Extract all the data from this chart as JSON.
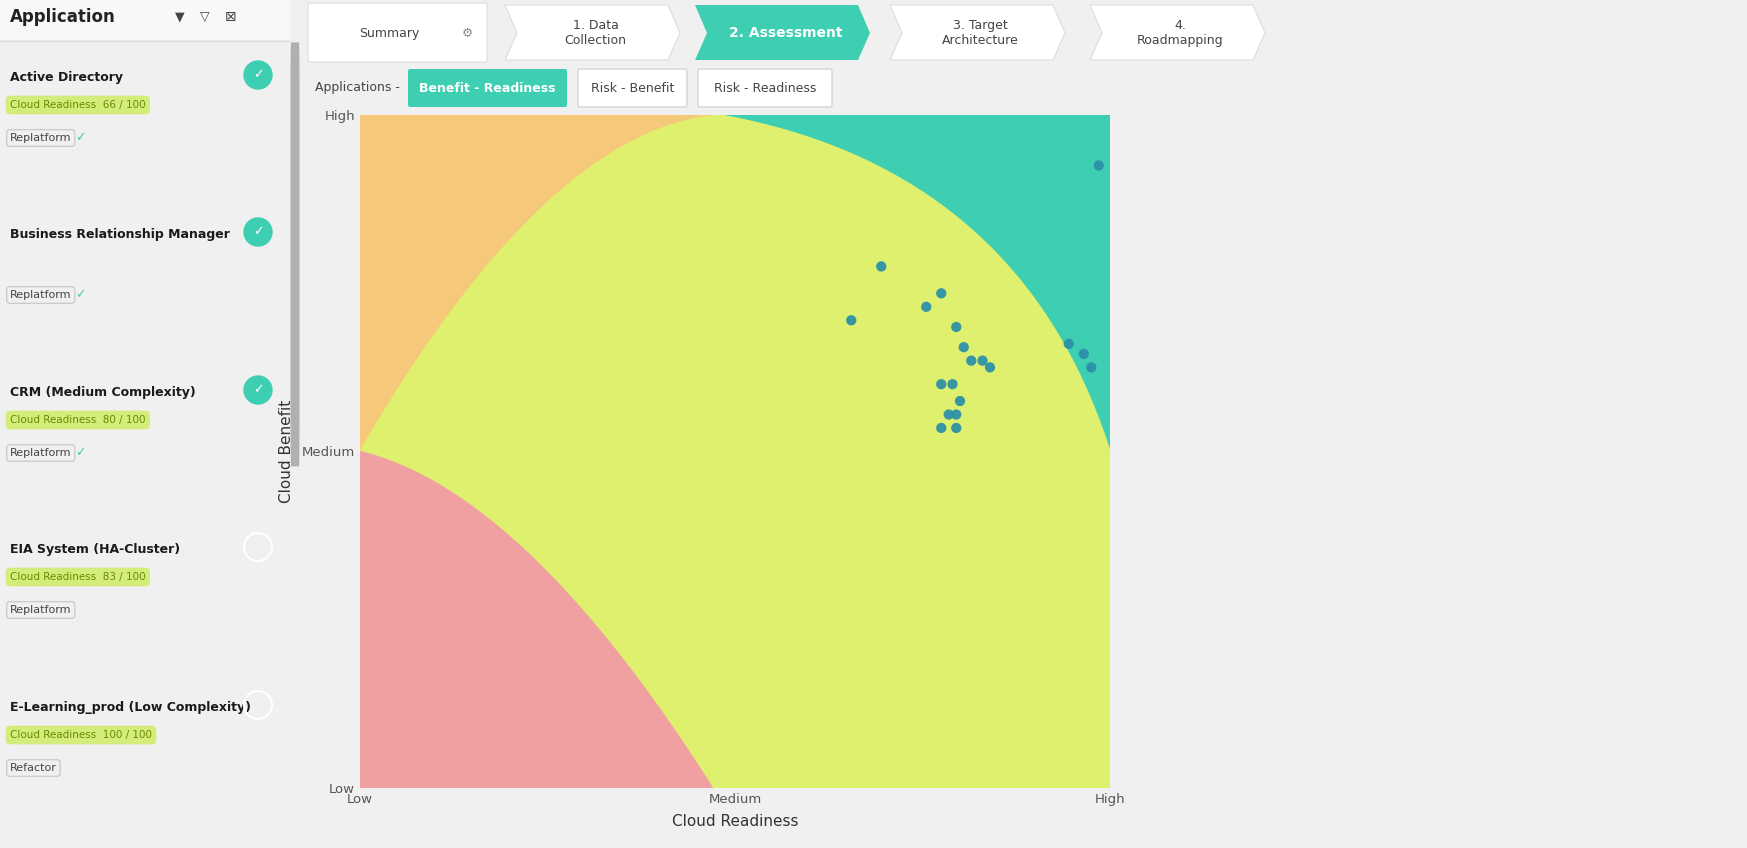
{
  "background_color": "#f0f0f0",
  "plot_area_bg": "#f0f0f0",
  "left_panel_bg": "#ffffff",
  "chart_bg": "#f5c87a",
  "nav_tabs": [
    "Summary",
    "1. Data\nCollection",
    "2. Assessment",
    "3. Target\nArchitecture",
    "4.\nRoadmapping"
  ],
  "active_tab_idx": 2,
  "active_tab_color": "#3ecfb2",
  "inactive_tab_color": "#ffffff",
  "inactive_tab_edge": "#dddddd",
  "sub_tabs": [
    "Applications -",
    "Benefit - Readiness",
    "Risk - Benefit",
    "Risk - Readiness"
  ],
  "active_sub_tab_idx": 1,
  "active_sub_tab_color": "#3ecfb2",
  "xlabel": "Cloud Readiness",
  "ylabel": "Cloud Benefit",
  "xtick_labels": [
    "Low",
    "Medium",
    "High"
  ],
  "ytick_labels": [
    "Low",
    "Medium",
    "High"
  ],
  "scatter_points": [
    [
      0.695,
      0.775
    ],
    [
      0.755,
      0.715
    ],
    [
      0.775,
      0.735
    ],
    [
      0.795,
      0.685
    ],
    [
      0.805,
      0.655
    ],
    [
      0.815,
      0.635
    ],
    [
      0.83,
      0.635
    ],
    [
      0.84,
      0.625
    ],
    [
      0.775,
      0.6
    ],
    [
      0.79,
      0.6
    ],
    [
      0.8,
      0.575
    ],
    [
      0.795,
      0.555
    ],
    [
      0.785,
      0.555
    ],
    [
      0.775,
      0.535
    ],
    [
      0.795,
      0.535
    ],
    [
      0.945,
      0.66
    ],
    [
      0.985,
      0.925
    ],
    [
      0.965,
      0.645
    ],
    [
      0.975,
      0.625
    ],
    [
      0.655,
      0.695
    ]
  ],
  "scatter_color": "#2a8fa8",
  "scatter_size": 55,
  "zone_colors": {
    "red": "#f0a0a0",
    "yellow": "#dff06e",
    "orange": "#f5c87a",
    "green": "#3ecfb2"
  },
  "left_panel_items": [
    {
      "name": "Active Directory",
      "badge": "Cloud Readiness  66 / 100",
      "badge_color": "#d4ed7a",
      "badge_text_color": "#6a8a00",
      "strategy": "Replatform",
      "strategy_checked": true,
      "item_checked": true
    },
    {
      "name": "Business Relationship Manager",
      "badge": null,
      "strategy": "Replatform",
      "strategy_checked": true,
      "item_checked": true
    },
    {
      "name": "CRM (Medium Complexity)",
      "badge": "Cloud Readiness  80 / 100",
      "badge_color": "#d4ed7a",
      "badge_text_color": "#6a8a00",
      "strategy": "Replatform",
      "strategy_checked": true,
      "item_checked": true
    },
    {
      "name": "EIA System (HA-Cluster)",
      "badge": "Cloud Readiness  83 / 100",
      "badge_color": "#d4ed7a",
      "badge_text_color": "#6a8a00",
      "strategy": "Replatform",
      "strategy_checked": false,
      "item_checked": false
    },
    {
      "name": "E-Learning_prod (Low Complexity)",
      "badge": "Cloud Readiness  100 / 100",
      "badge_color": "#d4ed7a",
      "badge_text_color": "#6a8a00",
      "strategy": "Refactor",
      "strategy_checked": false,
      "item_checked": false
    }
  ],
  "check_color": "#3ecfb2"
}
